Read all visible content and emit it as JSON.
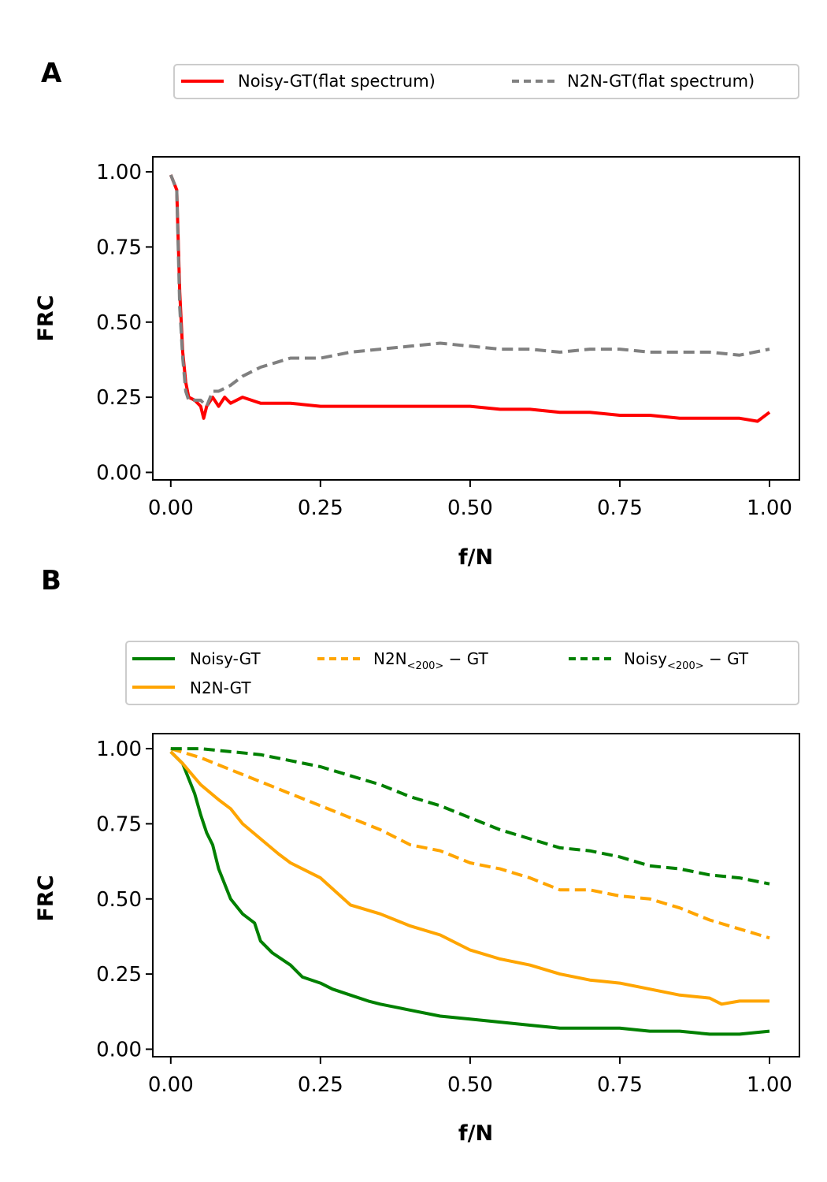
{
  "chart_data": [
    {
      "type": "line",
      "panel_label": "A",
      "xlabel": "f/N",
      "ylabel": "FRC",
      "xlim": [
        -0.03,
        1.05
      ],
      "ylim": [
        -0.025,
        1.05
      ],
      "xticks": [
        "0.00",
        "0.25",
        "0.50",
        "0.75",
        "1.00"
      ],
      "yticks": [
        "0.00",
        "0.25",
        "0.50",
        "0.75",
        "1.00"
      ],
      "legend_position": "above plot, right, 2 columns",
      "series": [
        {
          "name": "Noisy-GT(flat spectrum)",
          "color": "#ff0000",
          "style": "solid",
          "x": [
            0,
            0.01,
            0.015,
            0.02,
            0.025,
            0.03,
            0.04,
            0.05,
            0.055,
            0.06,
            0.07,
            0.08,
            0.09,
            0.1,
            0.12,
            0.15,
            0.2,
            0.25,
            0.3,
            0.35,
            0.4,
            0.45,
            0.5,
            0.55,
            0.6,
            0.65,
            0.7,
            0.75,
            0.8,
            0.85,
            0.9,
            0.95,
            0.98,
            1.0
          ],
          "y": [
            0.99,
            0.94,
            0.6,
            0.4,
            0.3,
            0.25,
            0.24,
            0.22,
            0.18,
            0.22,
            0.25,
            0.22,
            0.25,
            0.23,
            0.25,
            0.23,
            0.23,
            0.22,
            0.22,
            0.22,
            0.22,
            0.22,
            0.22,
            0.21,
            0.21,
            0.2,
            0.2,
            0.19,
            0.19,
            0.18,
            0.18,
            0.18,
            0.17,
            0.2
          ]
        },
        {
          "name": "N2N-GT(flat spectrum)",
          "color": "#808080",
          "style": "dashed",
          "x": [
            0,
            0.01,
            0.015,
            0.02,
            0.025,
            0.03,
            0.04,
            0.05,
            0.06,
            0.07,
            0.08,
            0.1,
            0.12,
            0.15,
            0.2,
            0.25,
            0.3,
            0.35,
            0.4,
            0.45,
            0.5,
            0.55,
            0.6,
            0.65,
            0.7,
            0.75,
            0.8,
            0.85,
            0.9,
            0.95,
            1.0
          ],
          "y": [
            0.99,
            0.94,
            0.55,
            0.38,
            0.27,
            0.24,
            0.24,
            0.24,
            0.22,
            0.27,
            0.27,
            0.29,
            0.32,
            0.35,
            0.38,
            0.38,
            0.4,
            0.41,
            0.42,
            0.43,
            0.42,
            0.41,
            0.41,
            0.4,
            0.41,
            0.41,
            0.4,
            0.4,
            0.4,
            0.39,
            0.41
          ]
        }
      ]
    },
    {
      "type": "line",
      "panel_label": "B",
      "xlabel": "f/N",
      "ylabel": "FRC",
      "xlim": [
        -0.03,
        1.05
      ],
      "ylim": [
        -0.025,
        1.05
      ],
      "xticks": [
        "0.00",
        "0.25",
        "0.50",
        "0.75",
        "1.00"
      ],
      "yticks": [
        "0.00",
        "0.25",
        "0.50",
        "0.75",
        "1.00"
      ],
      "legend_position": "above plot, 3 columns",
      "series": [
        {
          "name": "Noisy-GT",
          "color": "#008000",
          "style": "solid",
          "x": [
            0,
            0.02,
            0.03,
            0.04,
            0.05,
            0.06,
            0.07,
            0.08,
            0.1,
            0.12,
            0.14,
            0.15,
            0.17,
            0.2,
            0.22,
            0.25,
            0.27,
            0.3,
            0.33,
            0.35,
            0.4,
            0.45,
            0.5,
            0.55,
            0.6,
            0.65,
            0.7,
            0.75,
            0.8,
            0.85,
            0.9,
            0.95,
            1.0
          ],
          "y": [
            0.99,
            0.95,
            0.9,
            0.85,
            0.78,
            0.72,
            0.68,
            0.6,
            0.5,
            0.45,
            0.42,
            0.36,
            0.32,
            0.28,
            0.24,
            0.22,
            0.2,
            0.18,
            0.16,
            0.15,
            0.13,
            0.11,
            0.1,
            0.09,
            0.08,
            0.07,
            0.07,
            0.07,
            0.06,
            0.06,
            0.05,
            0.05,
            0.06
          ]
        },
        {
          "name": "N2N-GT",
          "color": "#ffa500",
          "style": "solid",
          "x": [
            0,
            0.02,
            0.05,
            0.08,
            0.1,
            0.12,
            0.15,
            0.18,
            0.2,
            0.25,
            0.3,
            0.35,
            0.4,
            0.45,
            0.5,
            0.55,
            0.6,
            0.65,
            0.7,
            0.75,
            0.8,
            0.85,
            0.9,
            0.92,
            0.95,
            1.0
          ],
          "y": [
            0.99,
            0.95,
            0.88,
            0.83,
            0.8,
            0.75,
            0.7,
            0.65,
            0.62,
            0.57,
            0.48,
            0.45,
            0.41,
            0.38,
            0.33,
            0.3,
            0.28,
            0.25,
            0.23,
            0.22,
            0.2,
            0.18,
            0.17,
            0.15,
            0.16,
            0.16
          ]
        },
        {
          "name": "N2N_{<200>}-GT",
          "color": "#ffa500",
          "style": "dashed",
          "x": [
            0,
            0.05,
            0.1,
            0.15,
            0.2,
            0.25,
            0.3,
            0.35,
            0.4,
            0.45,
            0.5,
            0.55,
            0.6,
            0.65,
            0.7,
            0.75,
            0.8,
            0.85,
            0.9,
            0.95,
            1.0
          ],
          "y": [
            1.0,
            0.97,
            0.93,
            0.89,
            0.85,
            0.81,
            0.77,
            0.73,
            0.68,
            0.66,
            0.62,
            0.6,
            0.57,
            0.53,
            0.53,
            0.51,
            0.5,
            0.47,
            0.43,
            0.4,
            0.37
          ]
        },
        {
          "name": "Noisy_{<200>}-GT",
          "color": "#008000",
          "style": "dashed",
          "x": [
            0,
            0.05,
            0.1,
            0.15,
            0.2,
            0.25,
            0.3,
            0.35,
            0.4,
            0.45,
            0.5,
            0.55,
            0.6,
            0.65,
            0.7,
            0.75,
            0.8,
            0.85,
            0.9,
            0.95,
            1.0
          ],
          "y": [
            1.0,
            1.0,
            0.99,
            0.98,
            0.96,
            0.94,
            0.91,
            0.88,
            0.84,
            0.81,
            0.77,
            0.73,
            0.7,
            0.67,
            0.66,
            0.64,
            0.61,
            0.6,
            0.58,
            0.57,
            0.55
          ]
        }
      ]
    }
  ]
}
